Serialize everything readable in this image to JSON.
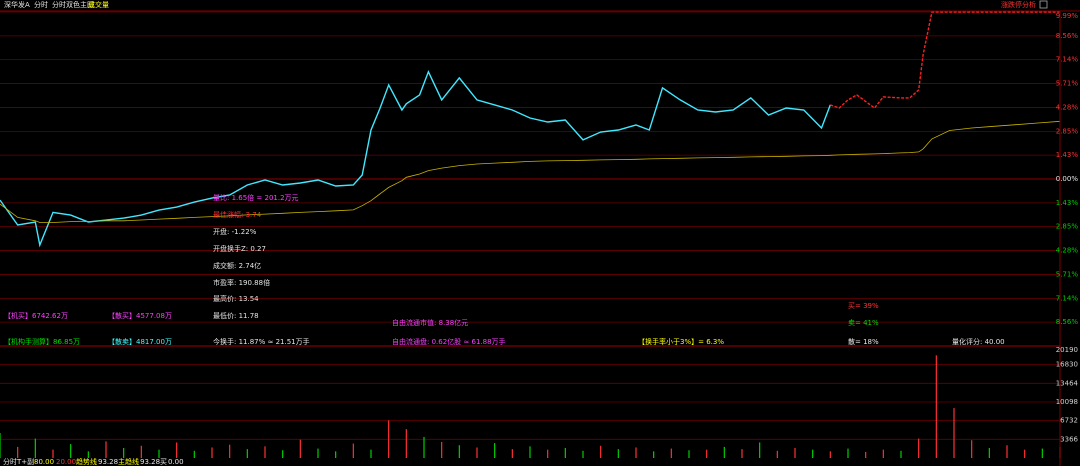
{
  "header": {
    "stock": "深华发A",
    "tabs": [
      "分时",
      "分时双色主图"
    ],
    "indicator": "成交量",
    "right_button": "涨跌停分析"
  },
  "info_panel": {
    "items": [
      "量比: 1.65倍 = 201.2万元",
      "最佳涨幅: 3.74",
      "开盘: -1.22%",
      "开盘换手Z: 0.27",
      "成交额: 2.74亿",
      "市盈率: 190.88倍",
      "最高价: 13.54",
      "最低价: 11.78",
      "今换手: 11.87% ≈ 21.51万手",
      "自由流通市值: 8.38亿元",
      "自由流通盘: 0.62亿股 ≈ 61.88万手",
      "【机买】6742.62万",
      "【散买】4577.08万",
      "【机构手测算】86.85万",
      "【散卖】4817.00万",
      "【换手率小于3%】= 6.3%",
      "买= 39%",
      "卖= 41%",
      "散= 18%",
      "量化评分: 40.00"
    ]
  },
  "footer": {
    "label": "分时T+副",
    "v1": "80.00",
    "v2": "20.00",
    "trend_label": "趋势线",
    "trend": "93.28",
    "main_label": "主趋线",
    "main": "93.28",
    "buy_label": "买",
    "buy": "0.00"
  },
  "chart_data": [
    {
      "type": "line",
      "x": [
        0,
        4,
        8,
        9,
        12,
        16,
        20,
        24,
        28,
        32,
        36,
        40,
        44,
        48,
        52,
        56,
        60,
        64,
        68,
        72,
        76,
        80,
        82,
        84,
        86,
        88,
        91,
        92,
        95,
        97,
        100,
        104,
        108,
        112,
        116,
        120,
        124,
        128,
        132,
        136,
        140,
        144,
        147,
        150,
        154,
        158,
        162,
        166,
        170,
        174,
        178,
        182,
        186,
        188,
        190,
        192,
        194,
        198,
        200,
        204,
        206,
        208,
        209,
        211,
        215,
        220,
        225,
        230,
        235,
        240
      ],
      "series": [
        {
          "color": "#40e8ff",
          "values": [
            -1.26,
            -2.75,
            -2.57,
            -3.95,
            -2.0,
            -2.16,
            -2.57,
            -2.46,
            -2.34,
            -2.16,
            -1.86,
            -1.68,
            -1.38,
            -1.14,
            -0.96,
            -0.36,
            -0.06,
            -0.36,
            -0.24,
            -0.06,
            -0.42,
            -0.36,
            0.24,
            2.93,
            4.2,
            5.63,
            4.13,
            4.5,
            5.03,
            6.41,
            4.73,
            6.05,
            4.73,
            4.43,
            4.13,
            3.65,
            3.41,
            3.53,
            2.34,
            2.81,
            2.93,
            3.23,
            2.93,
            5.45,
            4.73,
            4.13,
            4.01,
            4.13,
            4.85,
            3.83,
            4.25,
            4.13,
            3.05,
            4.43,
            null,
            null,
            null,
            null,
            null,
            null,
            null,
            null,
            null,
            null,
            null,
            null,
            null,
            null,
            null,
            null
          ]
        },
        {
          "color": "#ff2020",
          "values": [
            null,
            null,
            null,
            null,
            null,
            null,
            null,
            null,
            null,
            null,
            null,
            null,
            null,
            null,
            null,
            null,
            null,
            null,
            null,
            null,
            null,
            null,
            null,
            null,
            null,
            null,
            null,
            null,
            null,
            null,
            null,
            null,
            null,
            null,
            null,
            null,
            null,
            null,
            null,
            null,
            null,
            null,
            null,
            null,
            null,
            null,
            null,
            null,
            null,
            null,
            null,
            null,
            null,
            4.43,
            4.25,
            4.73,
            5.03,
            4.25,
            4.91,
            4.85,
            4.85,
            5.33,
            7.43,
            9.99,
            9.99,
            9.99,
            9.99,
            9.99,
            9.99,
            9.99
          ]
        },
        {
          "color": "#c8b400",
          "values": [
            -1.5,
            -2.3,
            -2.5,
            -2.6,
            -2.6,
            -2.55,
            -2.55,
            -2.5,
            -2.5,
            -2.45,
            -2.4,
            -2.35,
            -2.3,
            -2.25,
            -2.2,
            -2.15,
            -2.1,
            -2.05,
            -2.0,
            -1.95,
            -1.9,
            -1.85,
            -1.6,
            -1.3,
            -0.9,
            -0.5,
            -0.1,
            0.1,
            0.3,
            0.5,
            0.65,
            0.8,
            0.9,
            0.95,
            1.0,
            1.05,
            1.08,
            1.1,
            1.12,
            1.14,
            1.16,
            1.18,
            1.2,
            1.22,
            1.24,
            1.26,
            1.28,
            1.3,
            1.32,
            1.34,
            1.36,
            1.38,
            1.4,
            1.42,
            1.44,
            1.46,
            1.48,
            1.5,
            1.52,
            1.56,
            1.58,
            1.62,
            1.8,
            2.4,
            2.9,
            3.05,
            3.15,
            3.25,
            3.35,
            3.45
          ]
        }
      ],
      "xlim": [
        0,
        240
      ],
      "ylim": [
        -9.99,
        9.99
      ],
      "yticks": [
        {
          "value": 9.99,
          "label": "9.99%"
        },
        {
          "value": 8.56,
          "label": "8.56%"
        },
        {
          "value": 7.14,
          "label": "7.14%"
        },
        {
          "value": 5.71,
          "label": "5.71%"
        },
        {
          "value": 4.28,
          "label": "4.28%"
        },
        {
          "value": 2.85,
          "label": "2.85%"
        },
        {
          "value": 1.43,
          "label": "1.43%"
        },
        {
          "value": 0,
          "label": "0.00%"
        },
        {
          "value": -1.43,
          "label": "1.43%"
        },
        {
          "value": -2.85,
          "label": "2.85%"
        },
        {
          "value": -4.28,
          "label": "4.28%"
        },
        {
          "value": -5.71,
          "label": "5.71%"
        },
        {
          "value": -7.14,
          "label": "7.14%"
        },
        {
          "value": -8.56,
          "label": "8.56%"
        }
      ],
      "grid": true
    },
    {
      "type": "bar",
      "x": [
        0,
        4,
        8,
        12,
        16,
        20,
        24,
        28,
        32,
        36,
        40,
        44,
        48,
        52,
        56,
        60,
        64,
        68,
        72,
        76,
        80,
        84,
        88,
        92,
        96,
        100,
        104,
        108,
        112,
        116,
        120,
        124,
        128,
        132,
        136,
        140,
        144,
        148,
        152,
        156,
        160,
        164,
        168,
        172,
        176,
        180,
        184,
        188,
        192,
        196,
        200,
        204,
        208,
        212,
        216,
        220,
        224,
        228,
        232,
        236,
        240
      ],
      "values": [
        4500,
        2000,
        3500,
        1500,
        2500,
        1200,
        3000,
        1800,
        2200,
        1500,
        2800,
        1300,
        1900,
        2400,
        1600,
        2100,
        1400,
        3300,
        1700,
        1200,
        2600,
        1500,
        6800,
        5200,
        3800,
        2900,
        2300,
        1900,
        2700,
        1600,
        2100,
        1500,
        1800,
        1300,
        2200,
        1600,
        1900,
        1200,
        1700,
        1400,
        1500,
        2000,
        1600,
        2800,
        1300,
        1800,
        1500,
        1200,
        1700,
        1100,
        1500,
        1300,
        3500,
        18500,
        9000,
        3200,
        1800,
        2300,
        1500,
        1700,
        2000
      ],
      "colors": [
        "#00d000",
        "#ff3232",
        "#00d000",
        "#ff3232",
        "#00d000",
        "#00d000",
        "#ff3232",
        "#00d000",
        "#ff3232",
        "#00d000",
        "#ff3232",
        "#00d000",
        "#ff3232",
        "#ff3232",
        "#00d000",
        "#ff3232",
        "#00d000",
        "#ff3232",
        "#00d000",
        "#00d000",
        "#ff3232",
        "#00d000",
        "#ff3232",
        "#ff3232",
        "#00d000",
        "#ff3232",
        "#00d000",
        "#ff3232",
        "#00d000",
        "#ff3232",
        "#00d000",
        "#ff3232",
        "#00d000",
        "#00d000",
        "#ff3232",
        "#00d000",
        "#ff3232",
        "#00d000",
        "#ff3232",
        "#00d000",
        "#ff3232",
        "#00d000",
        "#ff3232",
        "#00d000",
        "#ff3232",
        "#ff3232",
        "#00d000",
        "#ff3232",
        "#00d000",
        "#ff3232",
        "#ff3232",
        "#00d000",
        "#ff3232",
        "#ff3232",
        "#ff3232",
        "#ff3232",
        "#00d000",
        "#ff3232",
        "#ff3232",
        "#00d000",
        "#ff3232"
      ],
      "xlim": [
        0,
        240
      ],
      "ylim": [
        0,
        20190
      ],
      "yticks": [
        3366,
        6732,
        10098,
        13464,
        16830,
        20190
      ],
      "grid": true
    }
  ]
}
